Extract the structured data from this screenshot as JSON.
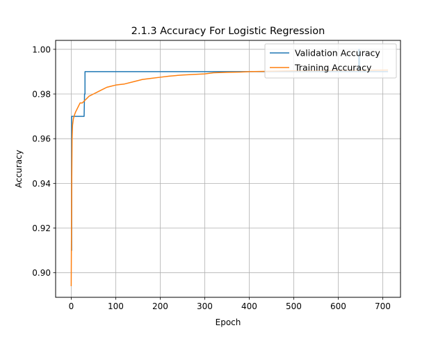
{
  "chart_data": {
    "type": "line",
    "title": "2.1.3 Accuracy For Logistic Regression",
    "xlabel": "Epoch",
    "ylabel": "Accuracy",
    "xlim": [
      -35,
      740
    ],
    "ylim": [
      0.889,
      1.004
    ],
    "xticks": [
      0,
      100,
      200,
      300,
      400,
      500,
      600,
      700
    ],
    "xtick_labels": [
      "0",
      "100",
      "200",
      "300",
      "400",
      "500",
      "600",
      "700"
    ],
    "yticks": [
      0.9,
      0.92,
      0.94,
      0.96,
      0.98,
      1.0
    ],
    "ytick_labels": [
      "0.90",
      "0.92",
      "0.94",
      "0.96",
      "0.98",
      "1.00"
    ],
    "grid": true,
    "legend_position": "top-right",
    "series": [
      {
        "name": "Validation Accuracy",
        "color": "#1f77b4",
        "x": [
          0,
          1,
          1,
          2,
          28,
          29,
          30,
          30,
          31,
          31,
          35,
          100,
          200,
          300,
          400,
          500,
          600,
          646,
          646,
          648,
          648,
          650,
          650,
          712
        ],
        "y": [
          0.91,
          0.91,
          0.97,
          0.97,
          0.97,
          0.97,
          0.98,
          0.98,
          0.98,
          0.99,
          0.99,
          0.99,
          0.99,
          0.99,
          0.99,
          0.99,
          0.99,
          0.99,
          1.0,
          1.0,
          0.99,
          0.99,
          0.99,
          0.99
        ]
      },
      {
        "name": "Training Accuracy",
        "color": "#ff7f0e",
        "x": [
          0,
          1,
          2,
          3,
          5,
          8,
          10,
          15,
          20,
          25,
          30,
          35,
          40,
          50,
          60,
          70,
          80,
          90,
          100,
          120,
          140,
          160,
          180,
          200,
          220,
          250,
          280,
          300,
          320,
          350,
          380,
          400,
          450,
          500,
          550,
          600,
          650,
          712
        ],
        "y": [
          0.894,
          0.935,
          0.96,
          0.966,
          0.969,
          0.971,
          0.972,
          0.974,
          0.976,
          0.976,
          0.977,
          0.978,
          0.979,
          0.98,
          0.981,
          0.982,
          0.983,
          0.9835,
          0.984,
          0.9845,
          0.9855,
          0.9865,
          0.987,
          0.9875,
          0.988,
          0.9885,
          0.9888,
          0.989,
          0.9895,
          0.9897,
          0.9898,
          0.99,
          0.9902,
          0.9904,
          0.9905,
          0.9906,
          0.9906,
          0.9907
        ]
      }
    ]
  }
}
